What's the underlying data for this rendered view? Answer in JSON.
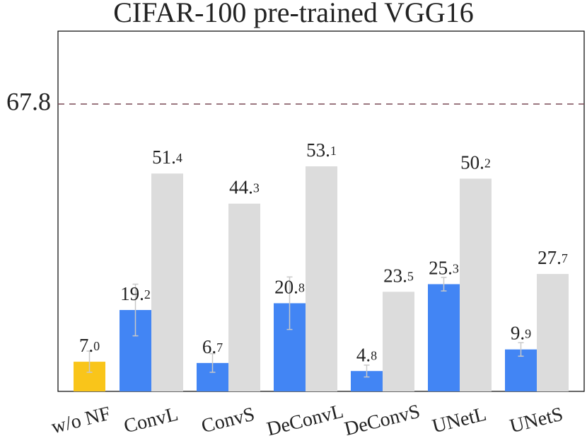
{
  "chart_data": {
    "type": "bar",
    "title": "CIFAR-100 pre-trained VGG16",
    "categories": [
      "w/o NF",
      "ConvL",
      "ConvS",
      "DeConvL",
      "DeConvS",
      "UNetL",
      "UNetS"
    ],
    "series": [
      {
        "colors": [
          "#f9c51a",
          "#4285f4",
          "#4285f4",
          "#4285f4",
          "#4285f4",
          "#4285f4",
          "#4285f4"
        ],
        "values": [
          7.0,
          19.2,
          6.7,
          20.8,
          4.8,
          25.3,
          9.9
        ],
        "value_labels": [
          "7.0",
          "19.2",
          "6.7",
          "20.8",
          "4.8",
          "25.3",
          "9.9"
        ],
        "errors": [
          2.5,
          6.1,
          2.2,
          6.2,
          1.4,
          1.6,
          1.6
        ]
      },
      {
        "color": "#dcdcdc",
        "values": [
          null,
          51.4,
          44.3,
          53.1,
          23.5,
          50.2,
          27.7
        ],
        "value_labels": [
          null,
          "51.4",
          "44.3",
          "53.1",
          "23.5",
          "50.2",
          "27.7"
        ]
      }
    ],
    "ylim": [
      0,
      85
    ],
    "yticks": [
      67.8
    ],
    "grid": true
  }
}
